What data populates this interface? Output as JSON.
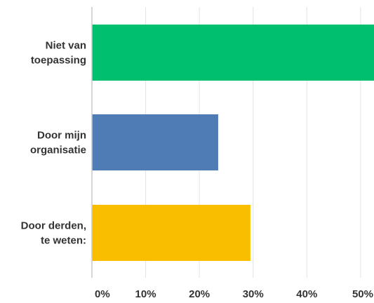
{
  "chart_data": {
    "type": "bar",
    "orientation": "horizontal",
    "categories": [
      [
        "Niet van",
        "toepassing"
      ],
      [
        "Door mijn",
        "organisatie"
      ],
      [
        "Door derden,",
        "te weten:"
      ]
    ],
    "values": [
      52.5,
      23.5,
      29.5
    ],
    "colors": [
      "#00bf6f",
      "#507cb6",
      "#f9be00"
    ],
    "xlim": [
      0,
      52.5
    ],
    "x_ticks": [
      0,
      10,
      20,
      30,
      40,
      50
    ],
    "x_tick_labels": [
      "0%",
      "10%",
      "20%",
      "30%",
      "40%",
      "50%"
    ],
    "grid": true,
    "title": "",
    "xlabel": "",
    "ylabel": ""
  }
}
